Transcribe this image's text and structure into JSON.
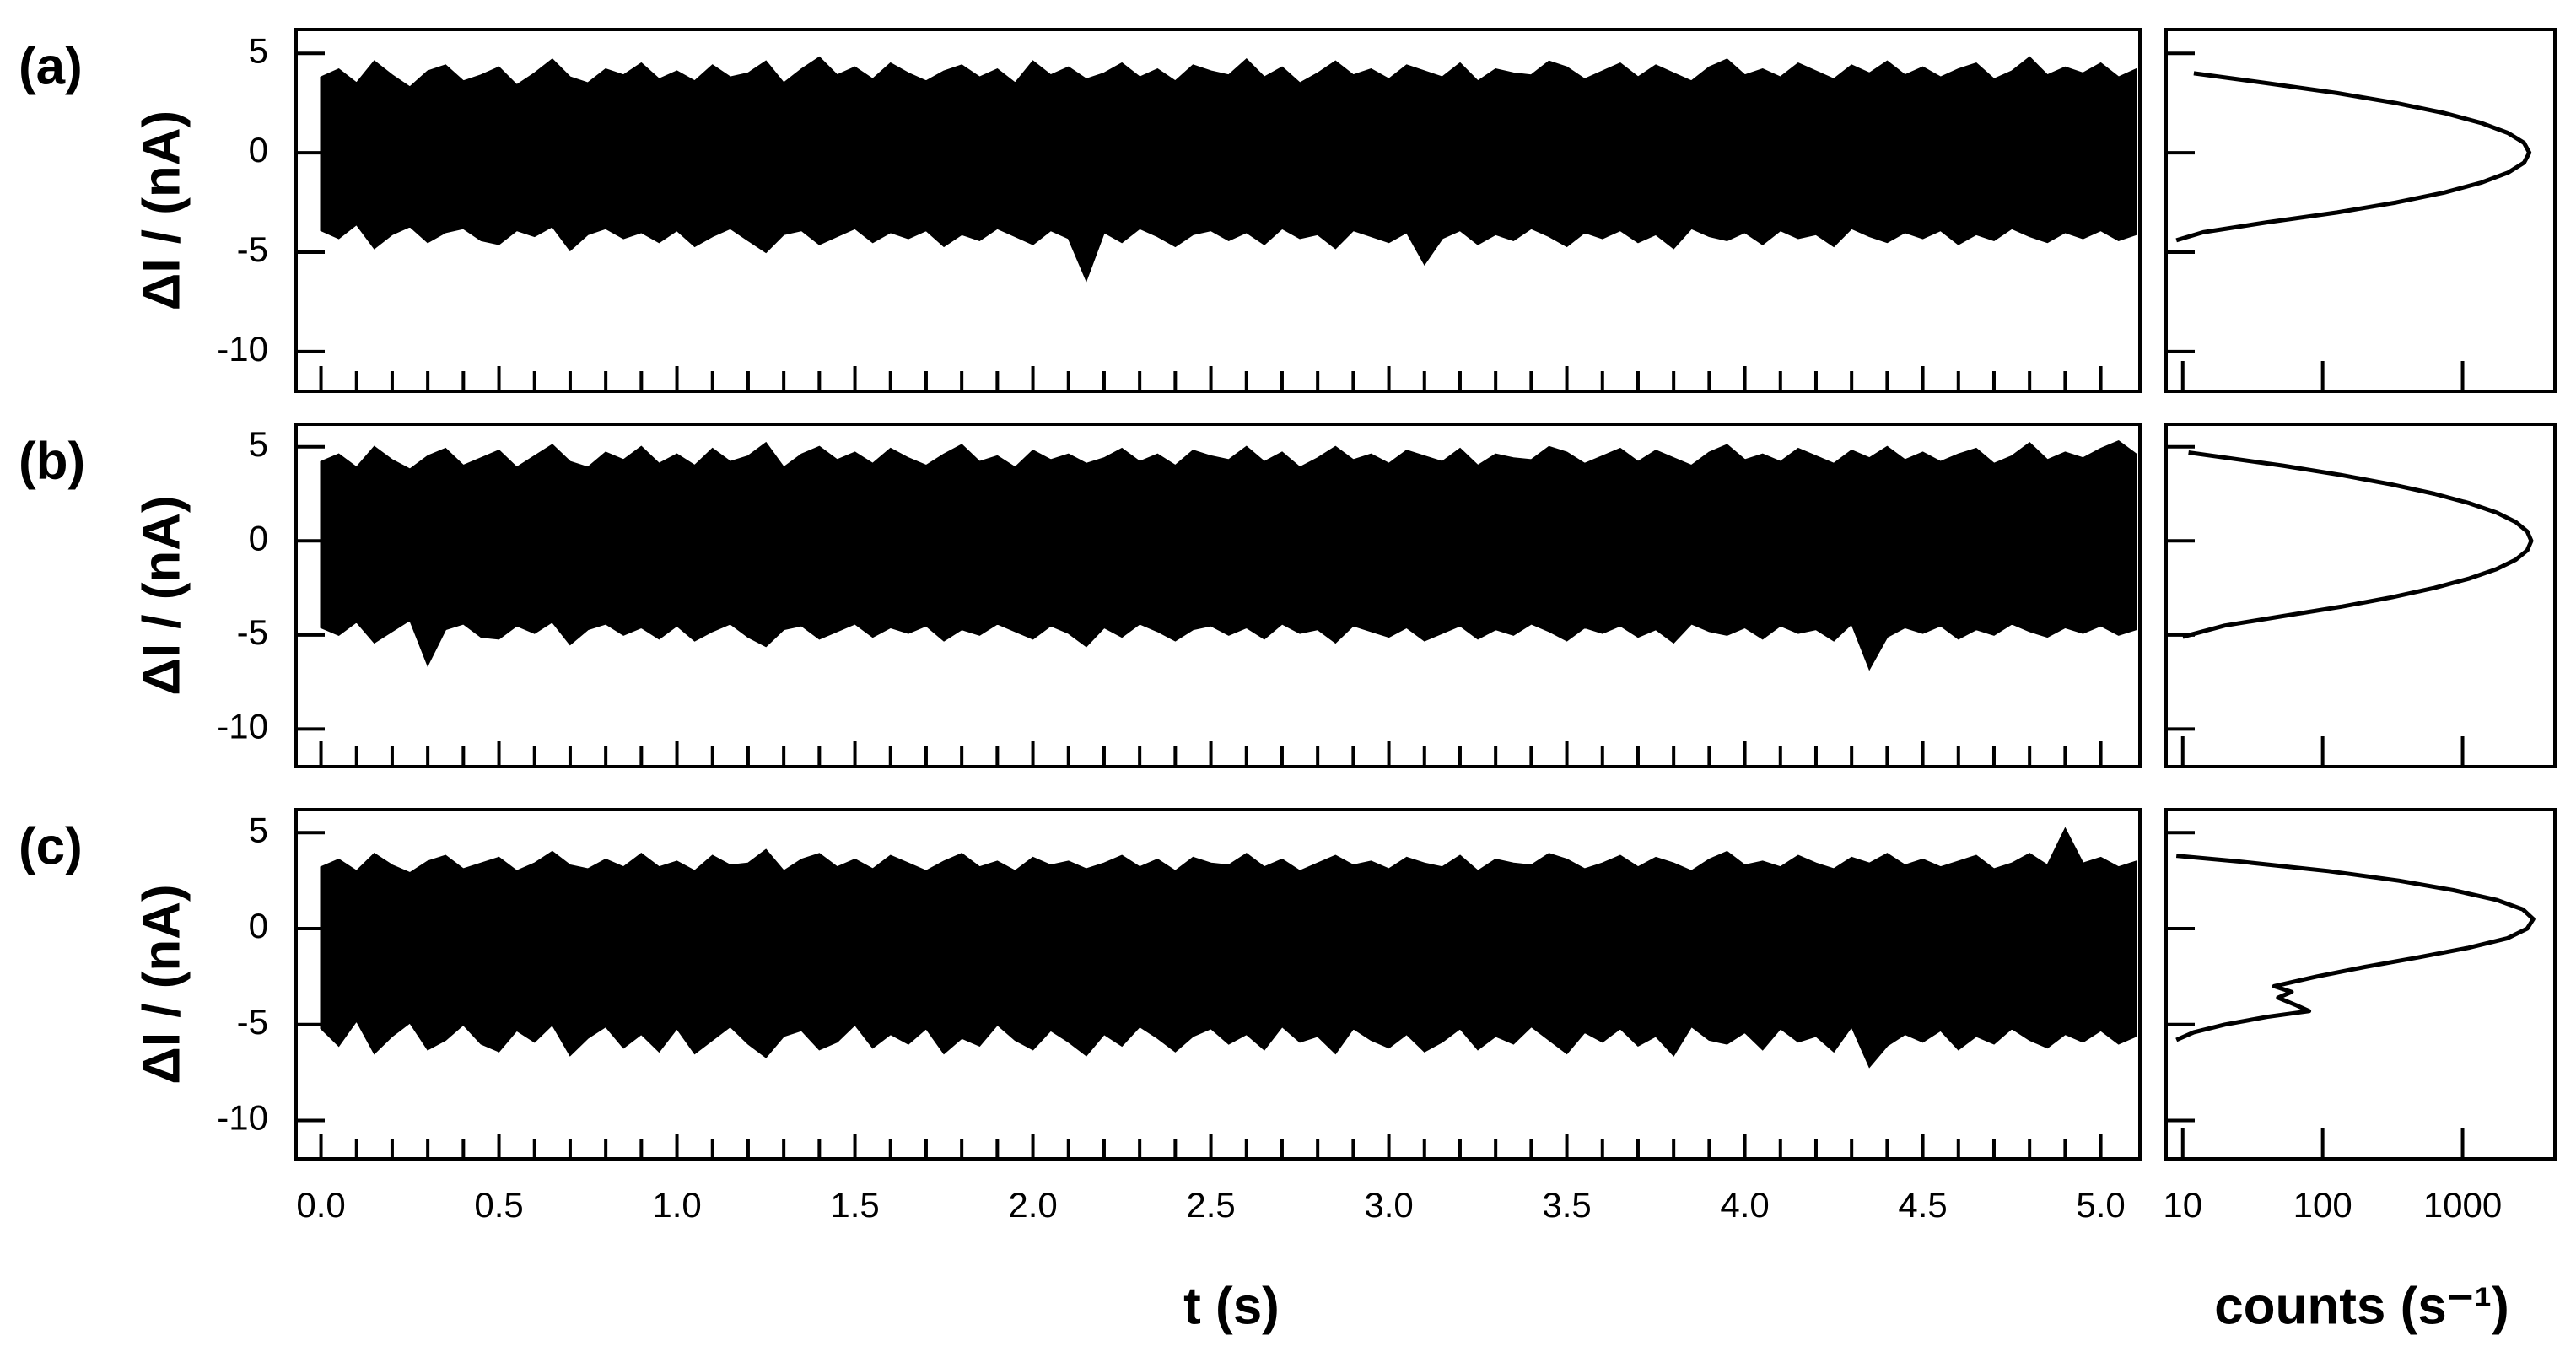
{
  "chart_data": [
    {
      "type": "area",
      "panel": "(a)",
      "ylabel": "ΔI / (nA)",
      "xlim": [
        -0.07,
        5.11
      ],
      "ylim": [
        -12,
        6.2
      ],
      "yticks": [
        -10,
        -5,
        0,
        5
      ],
      "color": "#000000",
      "x": [
        0,
        0.05,
        0.1,
        0.15,
        0.2,
        0.25,
        0.3,
        0.35,
        0.4,
        0.45,
        0.5,
        0.55,
        0.6,
        0.65,
        0.7,
        0.75,
        0.8,
        0.85,
        0.9,
        0.95,
        1,
        1.05,
        1.1,
        1.15,
        1.2,
        1.25,
        1.3,
        1.35,
        1.4,
        1.45,
        1.5,
        1.55,
        1.6,
        1.65,
        1.7,
        1.75,
        1.8,
        1.85,
        1.9,
        1.95,
        2,
        2.05,
        2.1,
        2.15,
        2.2,
        2.25,
        2.3,
        2.35,
        2.4,
        2.45,
        2.5,
        2.55,
        2.6,
        2.65,
        2.7,
        2.75,
        2.8,
        2.85,
        2.9,
        2.95,
        3,
        3.05,
        3.1,
        3.15,
        3.2,
        3.25,
        3.3,
        3.35,
        3.4,
        3.45,
        3.5,
        3.55,
        3.6,
        3.65,
        3.7,
        3.75,
        3.8,
        3.85,
        3.9,
        3.95,
        4,
        4.05,
        4.1,
        4.15,
        4.2,
        4.25,
        4.3,
        4.35,
        4.4,
        4.45,
        4.5,
        4.55,
        4.6,
        4.65,
        4.7,
        4.75,
        4.8,
        4.85,
        4.9,
        4.95,
        5,
        5.05,
        5.1
      ],
      "upper": [
        3.8,
        4.2,
        3.5,
        4.6,
        3.9,
        3.3,
        4.1,
        4.4,
        3.6,
        3.9,
        4.3,
        3.4,
        4.0,
        4.7,
        3.8,
        3.5,
        4.2,
        3.9,
        4.5,
        3.7,
        4.1,
        3.6,
        4.4,
        3.8,
        4.0,
        4.6,
        3.5,
        4.2,
        4.8,
        3.9,
        4.3,
        3.7,
        4.5,
        4.0,
        3.6,
        4.1,
        4.4,
        3.8,
        4.2,
        3.5,
        4.6,
        3.9,
        4.3,
        3.7,
        4.0,
        4.5,
        3.8,
        4.2,
        3.6,
        4.4,
        4.1,
        3.9,
        4.7,
        3.8,
        4.3,
        3.5,
        4.0,
        4.6,
        3.9,
        4.2,
        3.7,
        4.4,
        4.1,
        3.8,
        4.5,
        3.6,
        4.2,
        4.0,
        3.9,
        4.6,
        4.3,
        3.7,
        4.1,
        4.5,
        3.8,
        4.4,
        4.0,
        3.6,
        4.3,
        4.7,
        3.9,
        4.2,
        3.8,
        4.5,
        4.1,
        3.7,
        4.4,
        4.0,
        4.6,
        3.9,
        4.3,
        3.8,
        4.2,
        4.5,
        3.7,
        4.1,
        4.8,
        3.9,
        4.3,
        4.0,
        4.5,
        3.8,
        4.2
      ],
      "lower": [
        -3.9,
        -4.3,
        -3.6,
        -4.8,
        -4.1,
        -3.7,
        -4.5,
        -4.0,
        -3.8,
        -4.4,
        -4.6,
        -3.9,
        -4.2,
        -3.7,
        -4.9,
        -4.1,
        -3.8,
        -4.3,
        -4.0,
        -4.5,
        -3.9,
        -4.7,
        -4.2,
        -3.8,
        -4.4,
        -5.0,
        -4.1,
        -3.9,
        -4.6,
        -4.2,
        -3.8,
        -4.5,
        -4.0,
        -4.3,
        -3.9,
        -4.7,
        -4.1,
        -4.4,
        -3.8,
        -4.2,
        -4.6,
        -3.9,
        -4.3,
        -6.4,
        -4.0,
        -4.5,
        -3.8,
        -4.2,
        -4.7,
        -4.1,
        -3.9,
        -4.4,
        -4.0,
        -4.6,
        -3.8,
        -4.3,
        -4.1,
        -4.8,
        -3.9,
        -4.2,
        -4.5,
        -4.0,
        -5.6,
        -4.3,
        -3.9,
        -4.6,
        -4.1,
        -4.4,
        -3.8,
        -4.2,
        -4.7,
        -4.0,
        -4.3,
        -3.9,
        -4.5,
        -4.1,
        -4.8,
        -3.8,
        -4.2,
        -4.4,
        -4.0,
        -4.6,
        -3.9,
        -4.3,
        -4.1,
        -4.7,
        -3.8,
        -4.2,
        -4.5,
        -4.0,
        -4.3,
        -3.9,
        -4.6,
        -4.1,
        -4.4,
        -3.8,
        -4.2,
        -4.5,
        -4.0,
        -4.3,
        -3.9,
        -4.4,
        -4.1
      ]
    },
    {
      "type": "line",
      "xscale": "log",
      "xlim": [
        7.6,
        4570
      ],
      "ylim": [
        -12,
        6.2
      ],
      "color": "#000000",
      "current": [
        4.0,
        3.5,
        3.0,
        2.5,
        2.0,
        1.5,
        1.0,
        0.5,
        0,
        -0.5,
        -1.0,
        -1.5,
        -2.0,
        -2.5,
        -3.0,
        -3.5,
        -4.0,
        -4.4
      ],
      "counts": [
        12,
        40,
        127,
        335,
        740,
        1360,
        2110,
        2750,
        3000,
        2750,
        2110,
        1360,
        740,
        335,
        127,
        40,
        14,
        9
      ]
    },
    {
      "type": "area",
      "panel": "(b)",
      "ylabel": "ΔI / (nA)",
      "xlim": [
        -0.07,
        5.11
      ],
      "ylim": [
        -12,
        6.2
      ],
      "yticks": [
        -10,
        -5,
        0,
        5
      ],
      "color": "#000000",
      "x": [
        0,
        0.05,
        0.1,
        0.15,
        0.2,
        0.25,
        0.3,
        0.35,
        0.4,
        0.45,
        0.5,
        0.55,
        0.6,
        0.65,
        0.7,
        0.75,
        0.8,
        0.85,
        0.9,
        0.95,
        1,
        1.05,
        1.1,
        1.15,
        1.2,
        1.25,
        1.3,
        1.35,
        1.4,
        1.45,
        1.5,
        1.55,
        1.6,
        1.65,
        1.7,
        1.75,
        1.8,
        1.85,
        1.9,
        1.95,
        2,
        2.05,
        2.1,
        2.15,
        2.2,
        2.25,
        2.3,
        2.35,
        2.4,
        2.45,
        2.5,
        2.55,
        2.6,
        2.65,
        2.7,
        2.75,
        2.8,
        2.85,
        2.9,
        2.95,
        3,
        3.05,
        3.1,
        3.15,
        3.2,
        3.25,
        3.3,
        3.35,
        3.4,
        3.45,
        3.5,
        3.55,
        3.6,
        3.65,
        3.7,
        3.75,
        3.8,
        3.85,
        3.9,
        3.95,
        4,
        4.05,
        4.1,
        4.15,
        4.2,
        4.25,
        4.3,
        4.35,
        4.4,
        4.45,
        4.5,
        4.55,
        4.6,
        4.65,
        4.7,
        4.75,
        4.8,
        4.85,
        4.9,
        4.95,
        5,
        5.05,
        5.1
      ],
      "upper": [
        4.2,
        4.6,
        3.9,
        5.0,
        4.3,
        3.8,
        4.5,
        4.9,
        4.0,
        4.4,
        4.8,
        3.9,
        4.5,
        5.1,
        4.2,
        3.9,
        4.7,
        4.3,
        5.0,
        4.1,
        4.6,
        4.0,
        4.9,
        4.2,
        4.5,
        5.2,
        3.9,
        4.6,
        5.0,
        4.3,
        4.7,
        4.1,
        4.9,
        4.4,
        4.0,
        4.6,
        5.1,
        4.2,
        4.5,
        3.9,
        4.8,
        4.3,
        4.6,
        4.1,
        4.4,
        4.9,
        4.2,
        4.6,
        4.0,
        4.8,
        4.5,
        4.3,
        5.0,
        4.2,
        4.7,
        3.9,
        4.4,
        5.0,
        4.3,
        4.6,
        4.1,
        4.8,
        4.5,
        4.2,
        4.9,
        4.0,
        4.6,
        4.4,
        4.3,
        5.0,
        4.7,
        4.1,
        4.5,
        4.9,
        4.2,
        4.8,
        4.4,
        4.0,
        4.7,
        5.1,
        4.3,
        4.6,
        4.2,
        4.9,
        4.5,
        4.1,
        4.8,
        4.4,
        5.0,
        4.3,
        4.7,
        4.2,
        4.6,
        4.9,
        4.1,
        4.5,
        5.2,
        4.3,
        4.7,
        4.4,
        4.9,
        5.3,
        4.6
      ],
      "lower": [
        -4.6,
        -5.0,
        -4.3,
        -5.4,
        -4.8,
        -4.2,
        -6.6,
        -4.7,
        -4.4,
        -5.1,
        -5.2,
        -4.5,
        -4.9,
        -4.3,
        -5.5,
        -4.7,
        -4.4,
        -5.0,
        -4.6,
        -5.2,
        -4.5,
        -5.3,
        -4.8,
        -4.4,
        -5.1,
        -5.6,
        -4.7,
        -4.5,
        -5.2,
        -4.8,
        -4.4,
        -5.1,
        -4.6,
        -4.9,
        -4.5,
        -5.3,
        -4.7,
        -5.0,
        -4.4,
        -4.8,
        -5.2,
        -4.5,
        -4.9,
        -5.6,
        -4.6,
        -5.1,
        -4.4,
        -4.8,
        -5.3,
        -4.7,
        -4.5,
        -5.0,
        -4.6,
        -5.2,
        -4.4,
        -4.9,
        -4.7,
        -5.4,
        -4.5,
        -4.8,
        -5.1,
        -4.6,
        -5.3,
        -4.9,
        -4.5,
        -5.2,
        -4.7,
        -5.0,
        -4.4,
        -4.8,
        -5.3,
        -4.6,
        -4.9,
        -4.5,
        -5.1,
        -4.7,
        -5.4,
        -4.4,
        -4.8,
        -5.0,
        -4.6,
        -5.2,
        -4.5,
        -4.9,
        -4.7,
        -5.3,
        -4.4,
        -6.8,
        -5.1,
        -4.6,
        -4.9,
        -4.5,
        -5.2,
        -4.7,
        -5.0,
        -4.4,
        -4.8,
        -5.1,
        -4.6,
        -4.9,
        -4.5,
        -5.0,
        -4.7
      ]
    },
    {
      "type": "line",
      "xscale": "log",
      "xlim": [
        7.6,
        4570
      ],
      "ylim": [
        -12,
        6.2
      ],
      "color": "#000000",
      "current": [
        4.7,
        4.0,
        3.5,
        3.0,
        2.5,
        2.0,
        1.5,
        1.0,
        0.5,
        0,
        -0.5,
        -1.0,
        -1.5,
        -2.0,
        -2.5,
        -3.0,
        -3.5,
        -4.0,
        -4.5,
        -5.1
      ],
      "counts": [
        11,
        52,
        135,
        312,
        630,
        1120,
        1750,
        2400,
        2900,
        3100,
        2900,
        2400,
        1750,
        1120,
        630,
        312,
        135,
        52,
        20,
        10
      ]
    },
    {
      "type": "area",
      "panel": "(c)",
      "ylabel": "ΔI / (nA)",
      "xlabel": "t (s)",
      "xlim": [
        -0.07,
        5.11
      ],
      "ylim": [
        -12,
        6.2
      ],
      "yticks": [
        -10,
        -5,
        0,
        5
      ],
      "color": "#000000",
      "xticks": [
        {
          "value": 0,
          "label": "0.0"
        },
        0.5,
        {
          "value": 1,
          "label": "1.0"
        },
        1.5,
        {
          "value": 2,
          "label": "2.0"
        },
        2.5,
        {
          "value": 3,
          "label": "3.0"
        },
        3.5,
        {
          "value": 4,
          "label": "4.0"
        },
        4.5,
        {
          "value": 5,
          "label": "5.0"
        }
      ],
      "x": [
        0,
        0.05,
        0.1,
        0.15,
        0.2,
        0.25,
        0.3,
        0.35,
        0.4,
        0.45,
        0.5,
        0.55,
        0.6,
        0.65,
        0.7,
        0.75,
        0.8,
        0.85,
        0.9,
        0.95,
        1,
        1.05,
        1.1,
        1.15,
        1.2,
        1.25,
        1.3,
        1.35,
        1.4,
        1.45,
        1.5,
        1.55,
        1.6,
        1.65,
        1.7,
        1.75,
        1.8,
        1.85,
        1.9,
        1.95,
        2,
        2.05,
        2.1,
        2.15,
        2.2,
        2.25,
        2.3,
        2.35,
        2.4,
        2.45,
        2.5,
        2.55,
        2.6,
        2.65,
        2.7,
        2.75,
        2.8,
        2.85,
        2.9,
        2.95,
        3,
        3.05,
        3.1,
        3.15,
        3.2,
        3.25,
        3.3,
        3.35,
        3.4,
        3.45,
        3.5,
        3.55,
        3.6,
        3.65,
        3.7,
        3.75,
        3.8,
        3.85,
        3.9,
        3.95,
        4,
        4.05,
        4.1,
        4.15,
        4.2,
        4.25,
        4.3,
        4.35,
        4.4,
        4.45,
        4.5,
        4.55,
        4.6,
        4.65,
        4.7,
        4.75,
        4.8,
        4.85,
        4.9,
        4.95,
        5,
        5.05,
        5.1
      ],
      "upper": [
        3.2,
        3.6,
        3.0,
        3.9,
        3.3,
        2.9,
        3.5,
        3.8,
        3.1,
        3.4,
        3.7,
        3.0,
        3.4,
        4.0,
        3.3,
        3.1,
        3.6,
        3.2,
        3.9,
        3.2,
        3.5,
        3.0,
        3.8,
        3.3,
        3.4,
        4.1,
        3.0,
        3.6,
        3.9,
        3.2,
        3.6,
        3.1,
        3.8,
        3.4,
        3.0,
        3.5,
        3.9,
        3.2,
        3.5,
        3.0,
        3.7,
        3.3,
        3.5,
        3.1,
        3.4,
        3.8,
        3.2,
        3.6,
        3.0,
        3.7,
        3.4,
        3.3,
        3.9,
        3.2,
        3.6,
        3.0,
        3.4,
        3.8,
        3.3,
        3.5,
        3.1,
        3.7,
        3.4,
        3.2,
        3.8,
        3.0,
        3.6,
        3.4,
        3.3,
        3.9,
        3.6,
        3.1,
        3.4,
        3.8,
        3.2,
        3.7,
        3.4,
        3.0,
        3.6,
        4.0,
        3.3,
        3.5,
        3.2,
        3.8,
        3.4,
        3.1,
        3.7,
        3.4,
        3.9,
        3.3,
        3.6,
        3.2,
        3.5,
        3.8,
        3.1,
        3.4,
        3.9,
        3.3,
        5.2,
        3.4,
        3.7,
        3.2,
        3.5
      ],
      "lower": [
        -5.2,
        -6.1,
        -4.8,
        -6.5,
        -5.6,
        -4.9,
        -6.3,
        -5.8,
        -5.0,
        -6.0,
        -6.4,
        -5.3,
        -5.9,
        -5.0,
        -6.6,
        -5.7,
        -5.1,
        -6.2,
        -5.5,
        -6.4,
        -5.2,
        -6.5,
        -5.8,
        -5.1,
        -6.0,
        -6.7,
        -5.6,
        -5.3,
        -6.3,
        -5.9,
        -5.0,
        -6.2,
        -5.5,
        -6.0,
        -5.2,
        -6.5,
        -5.7,
        -6.1,
        -5.0,
        -5.8,
        -6.3,
        -5.3,
        -5.9,
        -6.6,
        -5.5,
        -6.1,
        -5.1,
        -5.7,
        -6.4,
        -5.6,
        -5.2,
        -6.0,
        -5.5,
        -6.3,
        -5.1,
        -5.9,
        -5.6,
        -6.5,
        -5.2,
        -5.8,
        -6.2,
        -5.5,
        -6.4,
        -5.9,
        -5.2,
        -6.3,
        -5.6,
        -6.0,
        -5.1,
        -5.8,
        -6.5,
        -5.4,
        -5.9,
        -5.2,
        -6.1,
        -5.6,
        -6.6,
        -5.1,
        -5.8,
        -6.0,
        -5.4,
        -6.3,
        -5.2,
        -5.9,
        -5.6,
        -6.4,
        -5.1,
        -7.2,
        -6.1,
        -5.5,
        -5.9,
        -5.3,
        -6.3,
        -5.6,
        -6.0,
        -5.2,
        -5.8,
        -6.2,
        -5.5,
        -5.9,
        -5.3,
        -6.0,
        -5.6
      ]
    },
    {
      "type": "line",
      "xscale": "log",
      "xlabel": "counts (s⁻¹)",
      "xlim": [
        7.6,
        4570
      ],
      "ylim": [
        -12,
        6.2
      ],
      "xticks": [
        10,
        100,
        1000
      ],
      "color": "#000000",
      "current": [
        3.8,
        3.5,
        3.0,
        2.5,
        2.0,
        1.5,
        1.0,
        0.5,
        0,
        -0.5,
        -1.0,
        -1.5,
        -2.0,
        -2.5,
        -3.0,
        -3.3,
        -3.6,
        -4.0,
        -4.3,
        -4.6,
        -5.0,
        -5.4,
        -5.8
      ],
      "counts": [
        9,
        25,
        110,
        350,
        860,
        1740,
        2700,
        3200,
        2900,
        2100,
        1100,
        480,
        200,
        90,
        45,
        60,
        48,
        65,
        80,
        40,
        20,
        12,
        9
      ]
    }
  ]
}
